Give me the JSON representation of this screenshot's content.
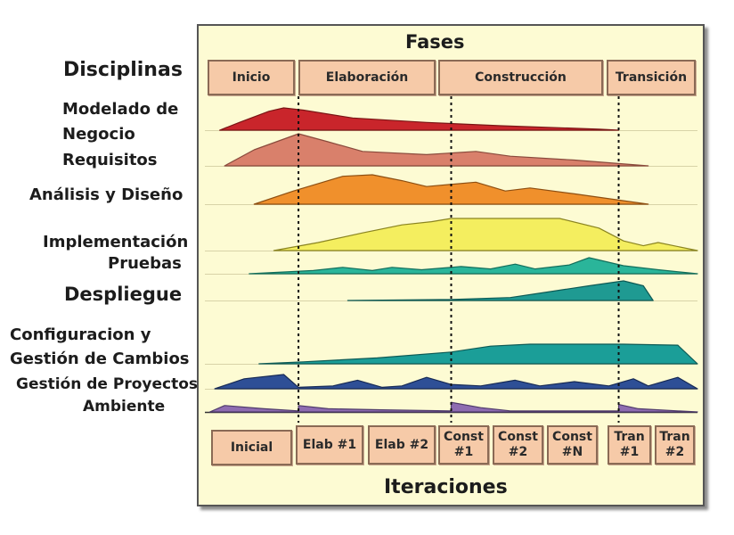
{
  "header": {
    "phases_title": "Fases",
    "disciplines_title": "Disciplinas"
  },
  "phases": [
    "Inicio",
    "Elaboración",
    "Construcción",
    "Transición"
  ],
  "disciplines": [
    "Modelado de",
    "Negocio",
    "Requisitos",
    "Análisis y Diseño",
    "Implementación",
    "Pruebas",
    "Despliegue",
    "Configuracion y",
    "Gestión de Cambios",
    "Gestión de Proyectos",
    "Ambiente"
  ],
  "iterations": [
    {
      "line1": "Inicial",
      "line2": ""
    },
    {
      "line1": "Elab #1",
      "line2": ""
    },
    {
      "line1": "Elab #2",
      "line2": ""
    },
    {
      "line1": "Const",
      "line2": "#1"
    },
    {
      "line1": "Const",
      "line2": "#2"
    },
    {
      "line1": "Const",
      "line2": "#N"
    },
    {
      "line1": "Tran",
      "line2": "#1"
    },
    {
      "line1": "Tran",
      "line2": "#2"
    }
  ],
  "footer": {
    "iterations_title": "Iteraciones"
  },
  "colors": {
    "panel_bg": "#fdfbd3",
    "box_fill": "#f6caa8",
    "business_modeling": "#c9252b",
    "requirements": "#d9806b",
    "analysis_design": "#f0902c",
    "implementation": "#f4ee5f",
    "testing": "#2ab59a",
    "deployment": "#1f9a92",
    "config_change": "#1b9e98",
    "project_mgmt": "#2e4f96",
    "environment": "#8e6cb1"
  },
  "chart_data": {
    "type": "area",
    "x_axis": "phase timeline (0 = start of Inicio, 1 = end of Transición)",
    "phase_boundaries": [
      0.19,
      0.5,
      0.84
    ],
    "series": [
      {
        "name": "Modelado de Negocio",
        "color": "#c9252b",
        "outline": "#7a1515",
        "points": [
          [
            0.03,
            0
          ],
          [
            0.07,
            0.35
          ],
          [
            0.13,
            0.85
          ],
          [
            0.16,
            1.0
          ],
          [
            0.2,
            0.9
          ],
          [
            0.3,
            0.55
          ],
          [
            0.45,
            0.35
          ],
          [
            0.6,
            0.2
          ],
          [
            0.8,
            0.05
          ],
          [
            0.84,
            0.0
          ]
        ]
      },
      {
        "name": "Requisitos",
        "color": "#d9806b",
        "outline": "#8a4a3c",
        "points": [
          [
            0.04,
            0
          ],
          [
            0.1,
            0.5
          ],
          [
            0.19,
            1.0
          ],
          [
            0.25,
            0.75
          ],
          [
            0.32,
            0.45
          ],
          [
            0.45,
            0.35
          ],
          [
            0.55,
            0.45
          ],
          [
            0.62,
            0.3
          ],
          [
            0.75,
            0.18
          ],
          [
            0.9,
            0.0
          ]
        ]
      },
      {
        "name": "Análisis y Diseño",
        "color": "#f0902c",
        "outline": "#8e4f12",
        "points": [
          [
            0.1,
            0
          ],
          [
            0.18,
            0.45
          ],
          [
            0.28,
            0.95
          ],
          [
            0.34,
            1.0
          ],
          [
            0.4,
            0.8
          ],
          [
            0.45,
            0.6
          ],
          [
            0.55,
            0.75
          ],
          [
            0.61,
            0.45
          ],
          [
            0.66,
            0.55
          ],
          [
            0.75,
            0.35
          ],
          [
            0.9,
            0.0
          ]
        ]
      },
      {
        "name": "Implementación",
        "color": "#f4ee5f",
        "outline": "#8a8420",
        "points": [
          [
            0.14,
            0
          ],
          [
            0.23,
            0.25
          ],
          [
            0.32,
            0.55
          ],
          [
            0.4,
            0.8
          ],
          [
            0.46,
            0.9
          ],
          [
            0.5,
            1.0
          ],
          [
            0.62,
            1.0
          ],
          [
            0.72,
            1.0
          ],
          [
            0.8,
            0.7
          ],
          [
            0.85,
            0.3
          ],
          [
            0.89,
            0.15
          ],
          [
            0.92,
            0.25
          ],
          [
            1.0,
            0.0
          ]
        ]
      },
      {
        "name": "Pruebas",
        "color": "#2ab59a",
        "outline": "#136f5c",
        "points": [
          [
            0.09,
            0
          ],
          [
            0.22,
            0.2
          ],
          [
            0.28,
            0.4
          ],
          [
            0.34,
            0.2
          ],
          [
            0.38,
            0.4
          ],
          [
            0.44,
            0.25
          ],
          [
            0.52,
            0.45
          ],
          [
            0.58,
            0.3
          ],
          [
            0.63,
            0.6
          ],
          [
            0.67,
            0.3
          ],
          [
            0.74,
            0.55
          ],
          [
            0.78,
            1.0
          ],
          [
            0.85,
            0.5
          ],
          [
            0.92,
            0.25
          ],
          [
            1.0,
            0.0
          ]
        ]
      },
      {
        "name": "Despliegue",
        "color": "#1f9a92",
        "outline": "#0d5a55",
        "points": [
          [
            0.29,
            0
          ],
          [
            0.5,
            0.05
          ],
          [
            0.62,
            0.15
          ],
          [
            0.7,
            0.45
          ],
          [
            0.78,
            0.75
          ],
          [
            0.85,
            1.0
          ],
          [
            0.89,
            0.75
          ],
          [
            0.91,
            0.0
          ]
        ]
      },
      {
        "name": "Configuracion y Gestión de Cambios",
        "color": "#1b9e98",
        "outline": "#0d5a55",
        "points": [
          [
            0.11,
            0
          ],
          [
            0.2,
            0.1
          ],
          [
            0.35,
            0.3
          ],
          [
            0.5,
            0.6
          ],
          [
            0.58,
            0.9
          ],
          [
            0.66,
            1.0
          ],
          [
            0.85,
            1.0
          ],
          [
            0.96,
            0.95
          ],
          [
            1.0,
            0.0
          ]
        ]
      },
      {
        "name": "Gestión de Proyectos",
        "color": "#2e4f96",
        "outline": "#172a55",
        "points": [
          [
            0.02,
            0
          ],
          [
            0.08,
            0.7
          ],
          [
            0.16,
            1.0
          ],
          [
            0.19,
            0.1
          ],
          [
            0.26,
            0.2
          ],
          [
            0.31,
            0.6
          ],
          [
            0.36,
            0.1
          ],
          [
            0.4,
            0.2
          ],
          [
            0.45,
            0.8
          ],
          [
            0.5,
            0.3
          ],
          [
            0.56,
            0.2
          ],
          [
            0.63,
            0.6
          ],
          [
            0.68,
            0.2
          ],
          [
            0.75,
            0.5
          ],
          [
            0.82,
            0.2
          ],
          [
            0.87,
            0.7
          ],
          [
            0.9,
            0.2
          ],
          [
            0.96,
            0.8
          ],
          [
            1.0,
            0.0
          ]
        ]
      },
      {
        "name": "Ambiente",
        "color": "#8e6cb1",
        "outline": "#4e3a6a",
        "points": [
          [
            0.01,
            0
          ],
          [
            0.04,
            0.6
          ],
          [
            0.12,
            0.3
          ],
          [
            0.19,
            0.1
          ],
          [
            0.19,
            0.6
          ],
          [
            0.25,
            0.3
          ],
          [
            0.36,
            0.2
          ],
          [
            0.5,
            0.1
          ],
          [
            0.5,
            0.9
          ],
          [
            0.56,
            0.4
          ],
          [
            0.62,
            0.1
          ],
          [
            0.84,
            0.1
          ],
          [
            0.84,
            0.7
          ],
          [
            0.88,
            0.3
          ],
          [
            1.0,
            0.0
          ]
        ]
      }
    ]
  }
}
